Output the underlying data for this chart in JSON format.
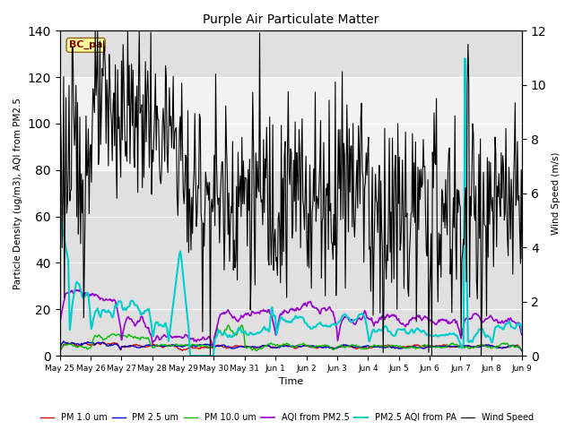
{
  "title": "Purple Air Particulate Matter",
  "xlabel": "Time",
  "ylabel_left": "Particle Density (ug/m3), AQI from PM2.5",
  "ylabel_right": "Wind Speed (m/s)",
  "ylim_left": [
    0,
    140
  ],
  "ylim_right": [
    0,
    12
  ],
  "yticks_left": [
    0,
    20,
    40,
    60,
    80,
    100,
    120,
    140
  ],
  "yticks_right": [
    0,
    2,
    4,
    6,
    8,
    10,
    12
  ],
  "background_color": "#ffffff",
  "plot_bg_color": "#e0e0e0",
  "shaded_band": [
    80,
    120
  ],
  "station_label": "BC_pa",
  "station_label_color": "#8b0000",
  "station_label_bg": "#ffff99",
  "legend_entries": [
    {
      "label": "PM 1.0 um",
      "color": "#cc0000",
      "lw": 1.0
    },
    {
      "label": "PM 2.5 um",
      "color": "#0000cc",
      "lw": 1.0
    },
    {
      "label": "PM 10.0 um",
      "color": "#00bb00",
      "lw": 1.0
    },
    {
      "label": "AQI from PM2.5",
      "color": "#9900cc",
      "lw": 1.2
    },
    {
      "label": "PM2.5 AQI from PA",
      "color": "#00cccc",
      "lw": 1.5
    },
    {
      "label": "Wind Speed",
      "color": "#000000",
      "lw": 0.8
    }
  ],
  "xticklabels": [
    "May 25",
    "May 26",
    "May 27",
    "May 28",
    "May 29",
    "May 30",
    "May 31",
    "Jun 1",
    "Jun 2",
    "Jun 3",
    "Jun 4",
    "Jun 5",
    "Jun 6",
    "Jun 7",
    "Jun 8",
    "Jun 9"
  ],
  "n_points": 600,
  "date_start": 0,
  "date_end": 15
}
